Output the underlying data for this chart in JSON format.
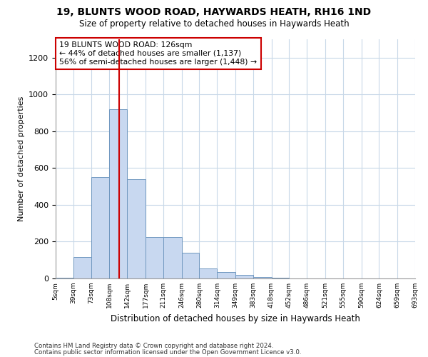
{
  "title": "19, BLUNTS WOOD ROAD, HAYWARDS HEATH, RH16 1ND",
  "subtitle": "Size of property relative to detached houses in Haywards Heath",
  "xlabel": "Distribution of detached houses by size in Haywards Heath",
  "ylabel": "Number of detached properties",
  "bar_color": "#c8d8f0",
  "bar_edge_color": "#7098c0",
  "vline_x": 126,
  "vline_color": "#cc0000",
  "annotation_title": "19 BLUNTS WOOD ROAD: 126sqm",
  "annotation_line2": "← 44% of detached houses are smaller (1,137)",
  "annotation_line3": "56% of semi-detached houses are larger (1,448) →",
  "bin_edges": [
    5,
    39,
    73,
    108,
    142,
    177,
    211,
    246,
    280,
    314,
    349,
    383,
    418,
    452,
    486,
    521,
    555,
    590,
    624,
    659,
    693
  ],
  "bar_heights": [
    5,
    115,
    550,
    920,
    540,
    225,
    225,
    140,
    55,
    33,
    20,
    8,
    2,
    0,
    0,
    0,
    0,
    0,
    0,
    0
  ],
  "ylim": [
    0,
    1300
  ],
  "yticks": [
    0,
    200,
    400,
    600,
    800,
    1000,
    1200
  ],
  "footer_line1": "Contains HM Land Registry data © Crown copyright and database right 2024.",
  "footer_line2": "Contains public sector information licensed under the Open Government Licence v3.0.",
  "background_color": "#ffffff",
  "plot_bg_color": "#ffffff",
  "grid_color": "#c8d8e8"
}
